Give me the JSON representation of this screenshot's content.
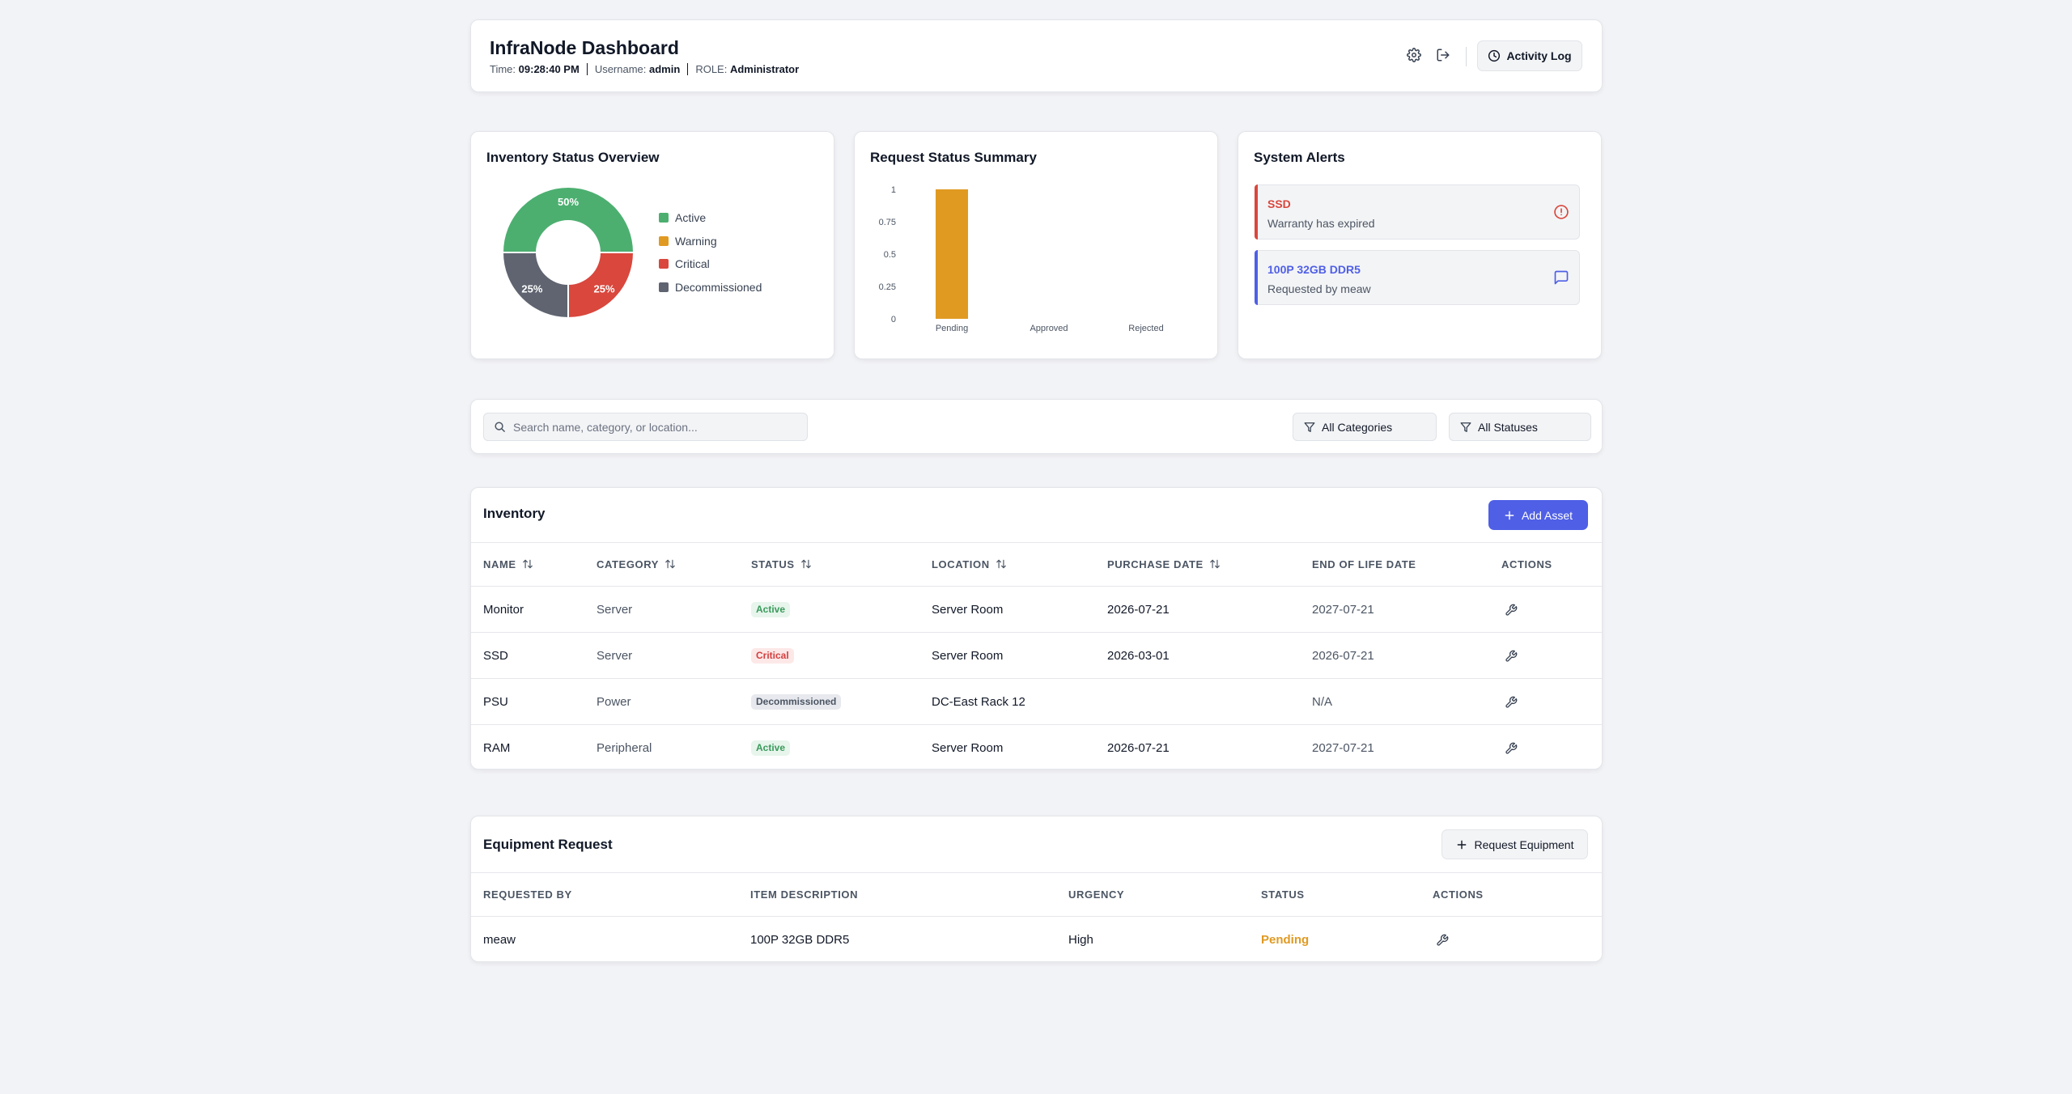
{
  "header": {
    "title": "InfraNode Dashboard",
    "time_label": "Time:",
    "time_value": "09:28:40 PM",
    "username_label": "Username:",
    "username_value": "admin",
    "role_label": "ROLE:",
    "role_value": "Administrator",
    "activity_log_label": "Activity Log"
  },
  "inventory_overview": {
    "title": "Inventory Status Overview",
    "legend": [
      {
        "label": "Active",
        "color": "#4caf70"
      },
      {
        "label": "Warning",
        "color": "#e09a22"
      },
      {
        "label": "Critical",
        "color": "#d9473d"
      },
      {
        "label": "Decommissioned",
        "color": "#5f6470"
      }
    ]
  },
  "request_summary": {
    "title": "Request Status Summary"
  },
  "chart_data": [
    {
      "type": "pie",
      "donut": true,
      "categories": [
        "Active",
        "Warning",
        "Critical",
        "Decommissioned"
      ],
      "values": [
        50,
        0,
        25,
        25
      ],
      "data_labels": [
        "50%",
        "",
        "25%",
        "25%"
      ],
      "colors": [
        "#4caf70",
        "#e09a22",
        "#d9473d",
        "#5f6470"
      ]
    },
    {
      "type": "bar",
      "categories": [
        "Pending",
        "Approved",
        "Rejected"
      ],
      "values": [
        1,
        0,
        0
      ],
      "ylim": [
        0,
        1
      ],
      "yticks": [
        "0",
        "0.25",
        "0.5",
        "0.75",
        "1"
      ],
      "bar_color": "#e09a22",
      "grid": false
    }
  ],
  "alerts": {
    "title": "System Alerts",
    "items": [
      {
        "title": "SSD",
        "text": "Warranty has expired",
        "color": "#d9473d",
        "icon": "alert-circle-icon"
      },
      {
        "title": "100P 32GB DDR5",
        "text": "Requested by meaw",
        "color": "#4f5fe6",
        "icon": "message-icon"
      }
    ]
  },
  "filters": {
    "search_placeholder": "Search name, category, or location...",
    "category_value": "All Categories",
    "status_value": "All Statuses"
  },
  "inventory": {
    "title": "Inventory",
    "add_label": "Add Asset",
    "columns": [
      "NAME",
      "CATEGORY",
      "STATUS",
      "LOCATION",
      "PURCHASE DATE",
      "END OF LIFE DATE",
      "ACTIONS"
    ],
    "rows": [
      {
        "name": "Monitor",
        "category": "Server",
        "status": "Active",
        "location": "Server Room",
        "purchase": "2026-07-21",
        "eol": "2027-07-21"
      },
      {
        "name": "SSD",
        "category": "Server",
        "status": "Critical",
        "location": "Server Room",
        "purchase": "2026-03-01",
        "eol": "2026-07-21"
      },
      {
        "name": "PSU",
        "category": "Power",
        "status": "Decommissioned",
        "location": "DC-East Rack 12",
        "purchase": "",
        "eol": "N/A"
      },
      {
        "name": "RAM",
        "category": "Peripheral",
        "status": "Active",
        "location": "Server Room",
        "purchase": "2026-07-21",
        "eol": "2027-07-21"
      }
    ]
  },
  "equipment": {
    "title": "Equipment Request",
    "request_label": "Request Equipment",
    "columns": [
      "REQUESTED BY",
      "ITEM DESCRIPTION",
      "URGENCY",
      "STATUS",
      "ACTIONS"
    ],
    "rows": [
      {
        "requested_by": "meaw",
        "item": "100P 32GB DDR5",
        "urgency": "High",
        "status": "Pending"
      }
    ]
  }
}
